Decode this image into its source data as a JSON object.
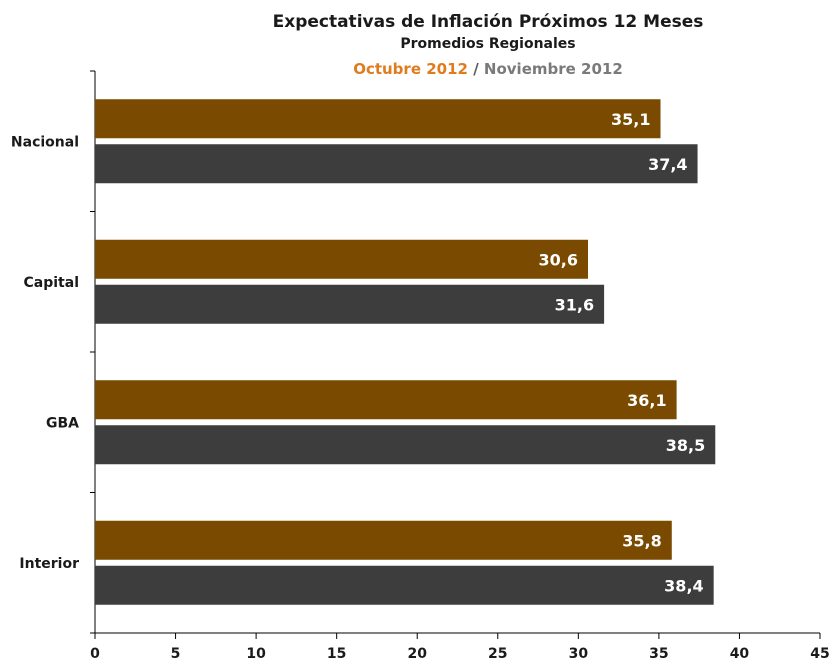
{
  "chart_data": {
    "type": "bar",
    "orientation": "horizontal",
    "title": "Expectativas de Inflación Próximos 12 Meses",
    "subtitle": "Promedios Regionales",
    "legend_separator": "/",
    "categories": [
      "Nacional",
      "Capital",
      "GBA",
      "Interior"
    ],
    "series": [
      {
        "name": "Octubre 2012",
        "values": [
          35.1,
          30.6,
          36.1,
          35.8
        ],
        "labels": [
          "35,1",
          "30,6",
          "36,1",
          "35,8"
        ],
        "color": "#7a4a00"
      },
      {
        "name": "Noviembre 2012",
        "values": [
          37.4,
          31.6,
          38.5,
          38.4
        ],
        "labels": [
          "37,4",
          "31,6",
          "38,5",
          "38,4"
        ],
        "color": "#3d3d3d"
      }
    ],
    "legend_colors": [
      "#e07b1e",
      "#7a7a7a"
    ],
    "xlim": [
      0,
      45
    ],
    "x_ticks": [
      0,
      5,
      10,
      15,
      20,
      25,
      30,
      35,
      40,
      45
    ],
    "grid": false,
    "legend_placement": "top"
  }
}
